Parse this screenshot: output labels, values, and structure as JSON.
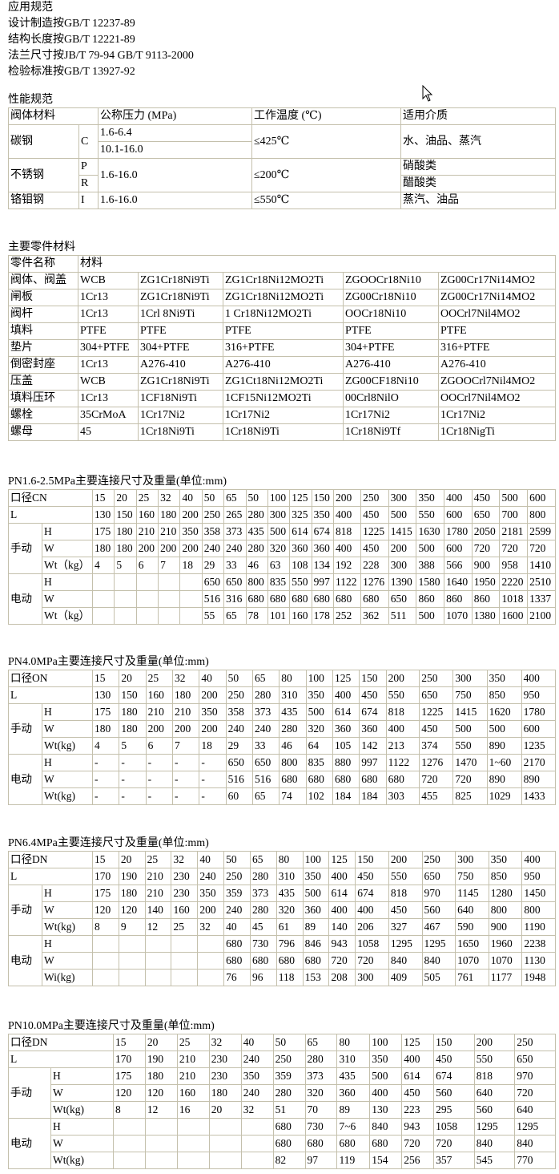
{
  "standards": {
    "heading": "应用规范",
    "lines": [
      "设计制造按GB/T 12237-89",
      "结构长度按GB/T 12221-89",
      "法兰尺寸按JB/T 79-94 GB/T 9113-2000",
      "检验标准按GB/T 13927-92"
    ]
  },
  "performance": {
    "heading": "性能规范",
    "headers": {
      "material": "阀体材料",
      "pressure": "公称压力 (MPa)",
      "temperature": "工作温度 (℃)",
      "medium": "适用介质"
    },
    "carbon": {
      "name": "碳钢",
      "code": "C",
      "pressure": [
        "1.6-6.4",
        "10.1-16.0"
      ],
      "temperature": "≤425℃",
      "medium": "水、油品、蒸汽"
    },
    "stainless": {
      "name": "不锈钢",
      "codes": [
        "P",
        "R"
      ],
      "pressure": "1.6-16.0",
      "temperature": "≤200℃",
      "medium": [
        "硝酸类",
        "醋酸类"
      ]
    },
    "chromemoly": {
      "name": "铬钼钢",
      "code": "I",
      "pressure": "1.6-16.0",
      "temperature": "≤550℃",
      "medium": "蒸汽、油品"
    }
  },
  "materials": {
    "heading": "主要零件材料",
    "header": [
      "零件名称",
      "材料"
    ],
    "rows": [
      [
        "阀体、阀盖",
        "WCB",
        "ZG1Cr18Ni9Ti",
        "ZG1Cr18Ni12MO2Ti",
        "ZGOOCr18Ni10",
        "ZG00Cr17Ni14MO2"
      ],
      [
        "闸板",
        "1Cr13",
        "ZG1Cr18Ni9Ti",
        "ZG1Cr18Ni12MO2Ti",
        "ZG00Cr18Ni10",
        "ZG00Cr17Ni14MO2"
      ],
      [
        "阀杆",
        "1Cr13",
        "1Crl 8Ni9Ti",
        "1 Cr18Ni12MO2Ti",
        "OOCr18Ni10",
        "OOCrl7Nil4MO2"
      ],
      [
        "填料",
        "PTFE",
        "PTFE",
        "PTFE",
        "PTFE",
        "PTFE"
      ],
      [
        "垫片",
        "304+PTFE",
        "304+PTFE",
        "316+PTFE",
        "304+PTFE",
        "316+PTFE"
      ],
      [
        "倒密封座",
        "1Cr13",
        "A276-410",
        "A276-410",
        "A276-410",
        "A276-410"
      ],
      [
        "压盖",
        "WCB",
        "ZG1Cr18Ni9Ti",
        "ZG1Ct18Ni12MO2Ti",
        "ZG00CF18Ni10",
        "ZGOOCrl7Nil4MO2"
      ],
      [
        "填料压环",
        "1Cr13",
        "1CF18Ni9Ti",
        "1CF15Ni12MO2Ti",
        "00Crl8NilO",
        "OOCrl7Nil4MO2"
      ],
      [
        "螺栓",
        "35CrMoA",
        "1Cr17Ni2",
        "1Cr17Ni2",
        "1Cr17Ni2",
        "1Cr17Ni2"
      ],
      [
        "螺母",
        "45",
        "1Cr18Ni9Ti",
        "1Cr18Ni9Ti",
        "1Cr18Ni9Tf",
        "1Cr18NigTi"
      ]
    ]
  },
  "dim_tables": [
    {
      "title": "PN1.6-2.5MPa主要连接尺寸及重量(单位:mm)",
      "size_label": "口径CN",
      "sizes": [
        "15",
        "20",
        "25",
        "32",
        "40",
        "50",
        "65",
        "50",
        "100",
        "125",
        "150",
        "200",
        "250",
        "300",
        "350",
        "400",
        "450",
        "500",
        "600"
      ],
      "L_label": "L",
      "L": [
        "130",
        "150",
        "160",
        "180",
        "200",
        "250",
        "265",
        "280",
        "300",
        "325",
        "350",
        "400",
        "450",
        "500",
        "550",
        "600",
        "650",
        "700",
        "800"
      ],
      "groups": [
        {
          "label": "手动",
          "rows": [
            {
              "label": "H",
              "values": [
                "175",
                "180",
                "210",
                "210",
                "350",
                "358",
                "373",
                "435",
                "500",
                "614",
                "674",
                "818",
                "1225",
                "1415",
                "1630",
                "1780",
                "2050",
                "2181",
                "2599"
              ]
            },
            {
              "label": "W",
              "values": [
                "180",
                "180",
                "200",
                "200",
                "200",
                "240",
                "240",
                "280",
                "320",
                "360",
                "360",
                "400",
                "450",
                "200",
                "500",
                "600",
                "720",
                "720",
                "720"
              ]
            },
            {
              "label": "Wt（kg）",
              "values": [
                "4",
                "5",
                "6",
                "7",
                "18",
                "29",
                "33",
                "46",
                "63",
                "108",
                "134",
                "192",
                "228",
                "300",
                "388",
                "566",
                "900",
                "958",
                "1410"
              ]
            }
          ]
        },
        {
          "label": "电动",
          "rows": [
            {
              "label": "H",
              "values": [
                "",
                "",
                "",
                "",
                "",
                "650",
                "650",
                "800",
                "835",
                "550",
                "997",
                "1122",
                "1276",
                "1390",
                "1580",
                "1640",
                "1950",
                "2220",
                "2510"
              ]
            },
            {
              "label": "W",
              "values": [
                "",
                "",
                "",
                "",
                "",
                "516",
                "316",
                "680",
                "680",
                "680",
                "680",
                "680",
                "680",
                "650",
                "860",
                "860",
                "860",
                "1018",
                "1337"
              ]
            },
            {
              "label": "Wt（kg）",
              "values": [
                "",
                "",
                "",
                "",
                "",
                "55",
                "65",
                "78",
                "101",
                "160",
                "178",
                "252",
                "362",
                "511",
                "500",
                "1070",
                "1380",
                "1600",
                "2100"
              ]
            }
          ]
        }
      ]
    },
    {
      "title": "PN4.0MPa主要连接尺寸及重量(单位:mm)",
      "size_label": "口径ON",
      "sizes": [
        "15",
        "20",
        "25",
        "32",
        "40",
        "50",
        "65",
        "80",
        "100",
        "125",
        "150",
        "200",
        "250",
        "300",
        "350",
        "400"
      ],
      "L_label": "L",
      "L": [
        "130",
        "150",
        "160",
        "180",
        "200",
        "250",
        "280",
        "310",
        "350",
        "400",
        "450",
        "550",
        "650",
        "750",
        "850",
        "950"
      ],
      "groups": [
        {
          "label": "手动",
          "rows": [
            {
              "label": "H",
              "values": [
                "175",
                "180",
                "210",
                "210",
                "350",
                "358",
                "373",
                "435",
                "500",
                "614",
                "674",
                "818",
                "1225",
                "1415",
                "1620",
                "1780"
              ]
            },
            {
              "label": "W",
              "values": [
                "180",
                "180",
                "200",
                "200",
                "200",
                "240",
                "240",
                "280",
                "320",
                "360",
                "360",
                "400",
                "450",
                "500",
                "500",
                "600"
              ]
            },
            {
              "label": "Wt(kg)",
              "values": [
                "4",
                "5",
                "6",
                "7",
                "18",
                "29",
                "33",
                "46",
                "64",
                "105",
                "142",
                "213",
                "374",
                "550",
                "890",
                "1235"
              ]
            }
          ]
        },
        {
          "label": "电动",
          "rows": [
            {
              "label": "H",
              "values": [
                "-",
                "-",
                "-",
                "-",
                "-",
                "650",
                "650",
                "800",
                "835",
                "880",
                "997",
                "1122",
                "1276",
                "1470",
                "1~60",
                "2170"
              ]
            },
            {
              "label": "W",
              "values": [
                "-",
                "-",
                "-",
                "-",
                "-",
                "516",
                "516",
                "680",
                "680",
                "680",
                "680",
                "680",
                "720",
                "720",
                "890",
                "890"
              ]
            },
            {
              "label": "Wt(kg)",
              "values": [
                "-",
                "-",
                "-",
                "-",
                "-",
                "60",
                "65",
                "74",
                "102",
                "184",
                "184",
                "303",
                "455",
                "825",
                "1029",
                "1433"
              ]
            }
          ]
        }
      ]
    },
    {
      "title": "PN6.4MPa主要连接尺寸及重量(单位:mm)",
      "size_label": "口径DN",
      "sizes": [
        "15",
        "20",
        "25",
        "32",
        "40",
        "50",
        "65",
        "80",
        "100",
        "125",
        "150",
        "200",
        "250",
        "300",
        "350",
        "400"
      ],
      "L_label": "L",
      "L": [
        "170",
        "190",
        "210",
        "230",
        "240",
        "250",
        "280",
        "310",
        "350",
        "400",
        "450",
        "550",
        "650",
        "750",
        "850",
        "950"
      ],
      "groups": [
        {
          "label": "手动",
          "rows": [
            {
              "label": "H",
              "values": [
                "175",
                "180",
                "210",
                "230",
                "350",
                "359",
                "373",
                "435",
                "500",
                "614",
                "674",
                "818",
                "970",
                "1145",
                "1280",
                "1450"
              ]
            },
            {
              "label": "W",
              "values": [
                "120",
                "120",
                "140",
                "160",
                "200",
                "240",
                "280",
                "320",
                "360",
                "400",
                "400",
                "450",
                "560",
                "640",
                "800",
                "800"
              ]
            },
            {
              "label": "Wt(kg)",
              "values": [
                "8",
                "9",
                "12",
                "25",
                "32",
                "40",
                "45",
                "61",
                "89",
                "140",
                "206",
                "327",
                "467",
                "590",
                "900",
                "1190"
              ]
            }
          ]
        },
        {
          "label": "电动",
          "rows": [
            {
              "label": "H",
              "values": [
                "",
                "",
                "",
                "",
                "",
                "680",
                "730",
                "796",
                "846",
                "943",
                "1058",
                "1295",
                "1295",
                "1650",
                "1960",
                "2238"
              ]
            },
            {
              "label": "W",
              "values": [
                "",
                "",
                "",
                "",
                "",
                "680",
                "680",
                "680",
                "680",
                "720",
                "720",
                "840",
                "840",
                "1070",
                "1070",
                "1130"
              ]
            },
            {
              "label": "Wi(kg)",
              "values": [
                "",
                "",
                "",
                "",
                "",
                "76",
                "96",
                "118",
                "153",
                "208",
                "300",
                "409",
                "505",
                "761",
                "1177",
                "1948"
              ]
            }
          ]
        }
      ]
    },
    {
      "title": "PN10.0MPa主要连接尺寸及重量(单位:mm)",
      "size_label": "口径DN",
      "sizes": [
        "15",
        "20",
        "25",
        "32",
        "40",
        "50",
        "65",
        "80",
        "100",
        "125",
        "150",
        "200",
        "250"
      ],
      "L_label": "L",
      "L": [
        "170",
        "190",
        "210",
        "230",
        "240",
        "250",
        "280",
        "310",
        "350",
        "400",
        "450",
        "550",
        "650"
      ],
      "groups": [
        {
          "label": "手动",
          "rows": [
            {
              "label": "H",
              "values": [
                "175",
                "180",
                "210",
                "230",
                "350",
                "359",
                "373",
                "435",
                "500",
                "614",
                "674",
                "818",
                "970"
              ]
            },
            {
              "label": "W",
              "values": [
                "120",
                "120",
                "160",
                "180",
                "240",
                "280",
                "320",
                "360",
                "400",
                "450",
                "560",
                "640",
                "720"
              ]
            },
            {
              "label": "Wt(kg)",
              "values": [
                "8",
                "12",
                "16",
                "20",
                "32",
                "51",
                "70",
                "89",
                "130",
                "223",
                "295",
                "560",
                "640"
              ]
            }
          ]
        },
        {
          "label": "电动",
          "rows": [
            {
              "label": "H",
              "values": [
                "",
                "",
                "",
                "",
                "",
                "680",
                "730",
                "7~6",
                "840",
                "943",
                "1058",
                "1295",
                "1295"
              ]
            },
            {
              "label": "W",
              "values": [
                "",
                "",
                "",
                "",
                "",
                "680",
                "680",
                "680",
                "680",
                "720",
                "720",
                "840",
                "840"
              ]
            },
            {
              "label": "Wt(kg)",
              "values": [
                "",
                "",
                "",
                "",
                "",
                "82",
                "97",
                "119",
                "154",
                "256",
                "357",
                "545",
                "770"
              ]
            }
          ]
        }
      ]
    }
  ]
}
